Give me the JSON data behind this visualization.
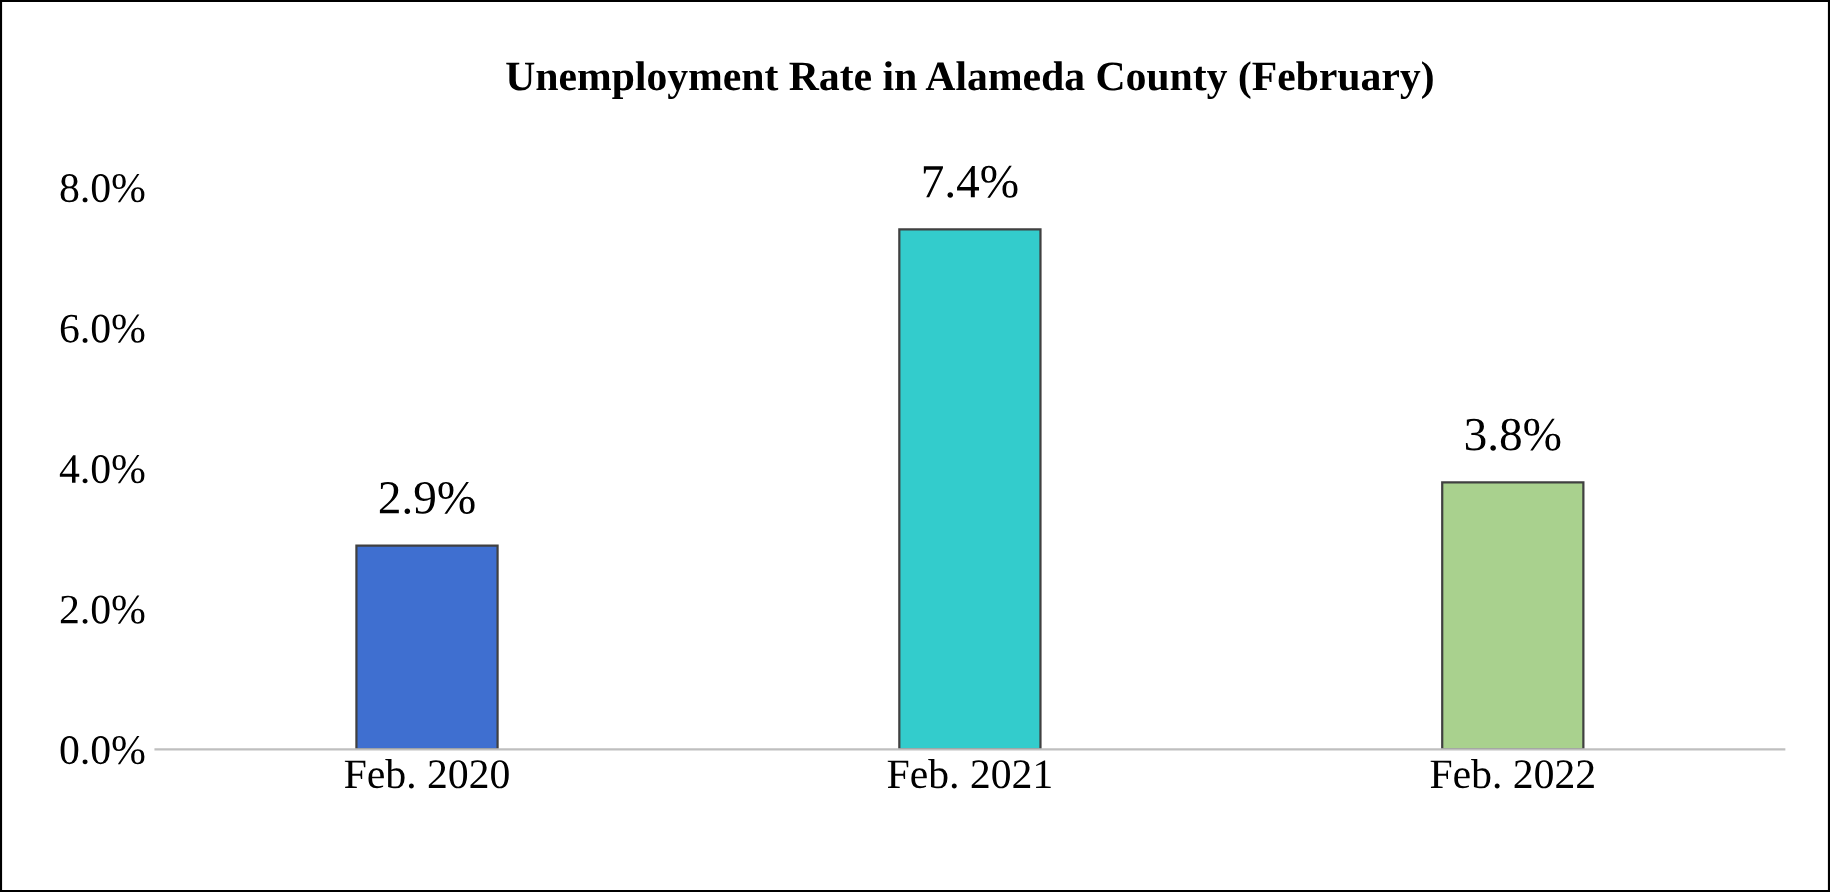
{
  "chart_data": {
    "type": "bar",
    "title": "Unemployment Rate in Alameda County (February)",
    "categories": [
      "Feb. 2020",
      "Feb. 2021",
      "Feb. 2022"
    ],
    "values": [
      2.9,
      7.4,
      3.8
    ],
    "colors": [
      "#3f6fd0",
      "#33cccc",
      "#a9d18e"
    ],
    "value_labels": [
      "2.9%",
      "7.4%",
      "3.8%"
    ],
    "ylim": [
      0,
      8
    ],
    "yticks": [
      {
        "value": 0,
        "label": "0.0%"
      },
      {
        "value": 2,
        "label": "2.0%"
      },
      {
        "value": 4,
        "label": "4.0%"
      },
      {
        "value": 6,
        "label": "6.0%"
      },
      {
        "value": 8,
        "label": "8.0%"
      }
    ],
    "grid": false,
    "legend": false
  }
}
